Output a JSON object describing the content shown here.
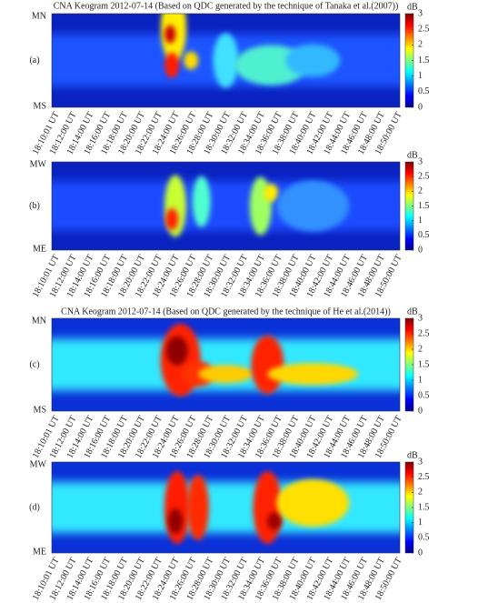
{
  "chart_data": [
    {
      "type": "heatmap",
      "title": "CNA Keogram 2012-07-14  (Based on QDC generated by the technique of Tanaka et al.(2007))",
      "panel_label": "(a)",
      "top_label": "MN",
      "bottom_label": "MS",
      "categories": [
        "18:10:01 UT",
        "18:12:00 UT",
        "18:14:00 UT",
        "18:16:00 UT",
        "18:18:00 UT",
        "18:20:00 UT",
        "18:22:00 UT",
        "18:24:00 UT",
        "18:26:00 UT",
        "18:28:00 UT",
        "18:30:00 UT",
        "18:32:00 UT",
        "18:34:00 UT",
        "18:36:00 UT",
        "18:38:00 UT",
        "18:40:00 UT",
        "18:42:00 UT",
        "18:44:00 UT",
        "18:46:00 UT",
        "18:48:00 UT",
        "18:50:00 UT"
      ],
      "colorbar_label": "dB",
      "clim": [
        0,
        3
      ],
      "cticks": [
        0,
        0.5,
        1,
        1.5,
        2,
        2.5,
        3
      ],
      "colormap": "jet"
    },
    {
      "type": "heatmap",
      "panel_label": "(b)",
      "top_label": "MW",
      "bottom_label": "ME",
      "categories": [
        "18:10:01 UT",
        "18:12:00 UT",
        "18:14:00 UT",
        "18:16:00 UT",
        "18:18:00 UT",
        "18:20:00 UT",
        "18:22:00 UT",
        "18:24:00 UT",
        "18:26:00 UT",
        "18:28:00 UT",
        "18:30:00 UT",
        "18:32:00 UT",
        "18:34:00 UT",
        "18:36:00 UT",
        "18:38:00 UT",
        "18:40:00 UT",
        "18:42:00 UT",
        "18:44:00 UT",
        "18:46:00 UT",
        "18:48:00 UT",
        "18:50:00 UT"
      ],
      "colorbar_label": "dB",
      "clim": [
        0,
        3
      ],
      "cticks": [
        0,
        0.5,
        1,
        1.5,
        2,
        2.5,
        3
      ],
      "colormap": "jet"
    },
    {
      "type": "heatmap",
      "title": "CNA Keogram 2012-07-14 (Based on QDC generated by the technique of He et al.(2014))",
      "panel_label": "(c)",
      "top_label": "MN",
      "bottom_label": "MS",
      "categories": [
        "18:10:01 UT",
        "18:12:00 UT",
        "18:14:00 UT",
        "18:16:00 UT",
        "18:18:00 UT",
        "18:20:00 UT",
        "18:22:00 UT",
        "18:24:00 UT",
        "18:26:00 UT",
        "18:28:00 UT",
        "18:30:00 UT",
        "18:32:00 UT",
        "18:34:00 UT",
        "18:36:00 UT",
        "18:38:00 UT",
        "18:40:00 UT",
        "18:42:00 UT",
        "18:44:00 UT",
        "18:46:00 UT",
        "18:48:00 UT",
        "18:50:00 UT"
      ],
      "colorbar_label": "dB",
      "clim": [
        0,
        3
      ],
      "cticks": [
        0,
        0.5,
        1,
        1.5,
        2,
        2.5,
        3
      ],
      "colormap": "jet"
    },
    {
      "type": "heatmap",
      "panel_label": "(d)",
      "top_label": "MW",
      "bottom_label": "ME",
      "categories": [
        "18:10:01 UT",
        "18:12:00 UT",
        "18:14:00 UT",
        "18:16:00 UT",
        "18:18:00 UT",
        "18:20:00 UT",
        "18:22:00 UT",
        "18:24:00 UT",
        "18:26:00 UT",
        "18:28:00 UT",
        "18:30:00 UT",
        "18:32:00 UT",
        "18:34:00 UT",
        "18:36:00 UT",
        "18:38:00 UT",
        "18:40:00 UT",
        "18:42:00 UT",
        "18:44:00 UT",
        "18:46:00 UT",
        "18:48:00 UT",
        "18:50:00 UT"
      ],
      "colorbar_label": "dB",
      "clim": [
        0,
        3
      ],
      "cticks": [
        0,
        0.5,
        1,
        1.5,
        2,
        2.5,
        3
      ],
      "colormap": "jet"
    }
  ]
}
